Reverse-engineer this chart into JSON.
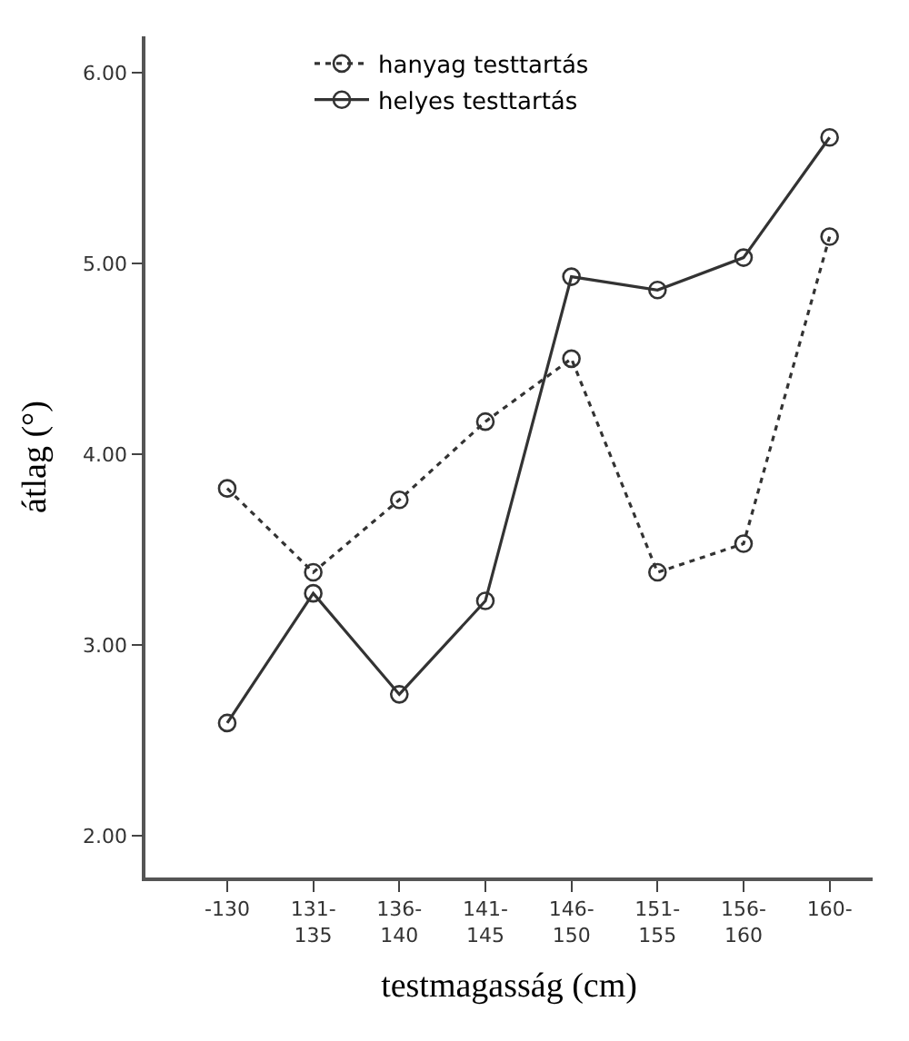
{
  "chart_data": {
    "type": "line",
    "xlabel": "testmagasság (cm)",
    "ylabel": "átlag (°)",
    "categories": [
      "-130",
      "131-\n135",
      "136-\n140",
      "141-\n145",
      "146-\n150",
      "151-\n155",
      "156-\n160",
      "160-"
    ],
    "series": [
      {
        "name": "hanyag testtartás",
        "color": "#333333",
        "line_style": "dotted",
        "values": [
          3.82,
          3.38,
          3.76,
          4.17,
          4.5,
          3.38,
          3.53,
          5.14
        ]
      },
      {
        "name": "helyes testtartás",
        "color": "#333333",
        "line_style": "solid",
        "values": [
          2.59,
          3.27,
          2.74,
          3.23,
          4.93,
          4.86,
          5.03,
          5.66
        ]
      }
    ],
    "ylim": [
      1.78,
      6.19
    ],
    "yticks": [
      {
        "value": 2,
        "label": "2.00"
      },
      {
        "value": 3,
        "label": "3.00"
      },
      {
        "value": 4,
        "label": "4.00"
      },
      {
        "value": 5,
        "label": "5.00"
      },
      {
        "value": 6,
        "label": "6.00"
      }
    ],
    "marker": "circle",
    "legend": "top left"
  }
}
